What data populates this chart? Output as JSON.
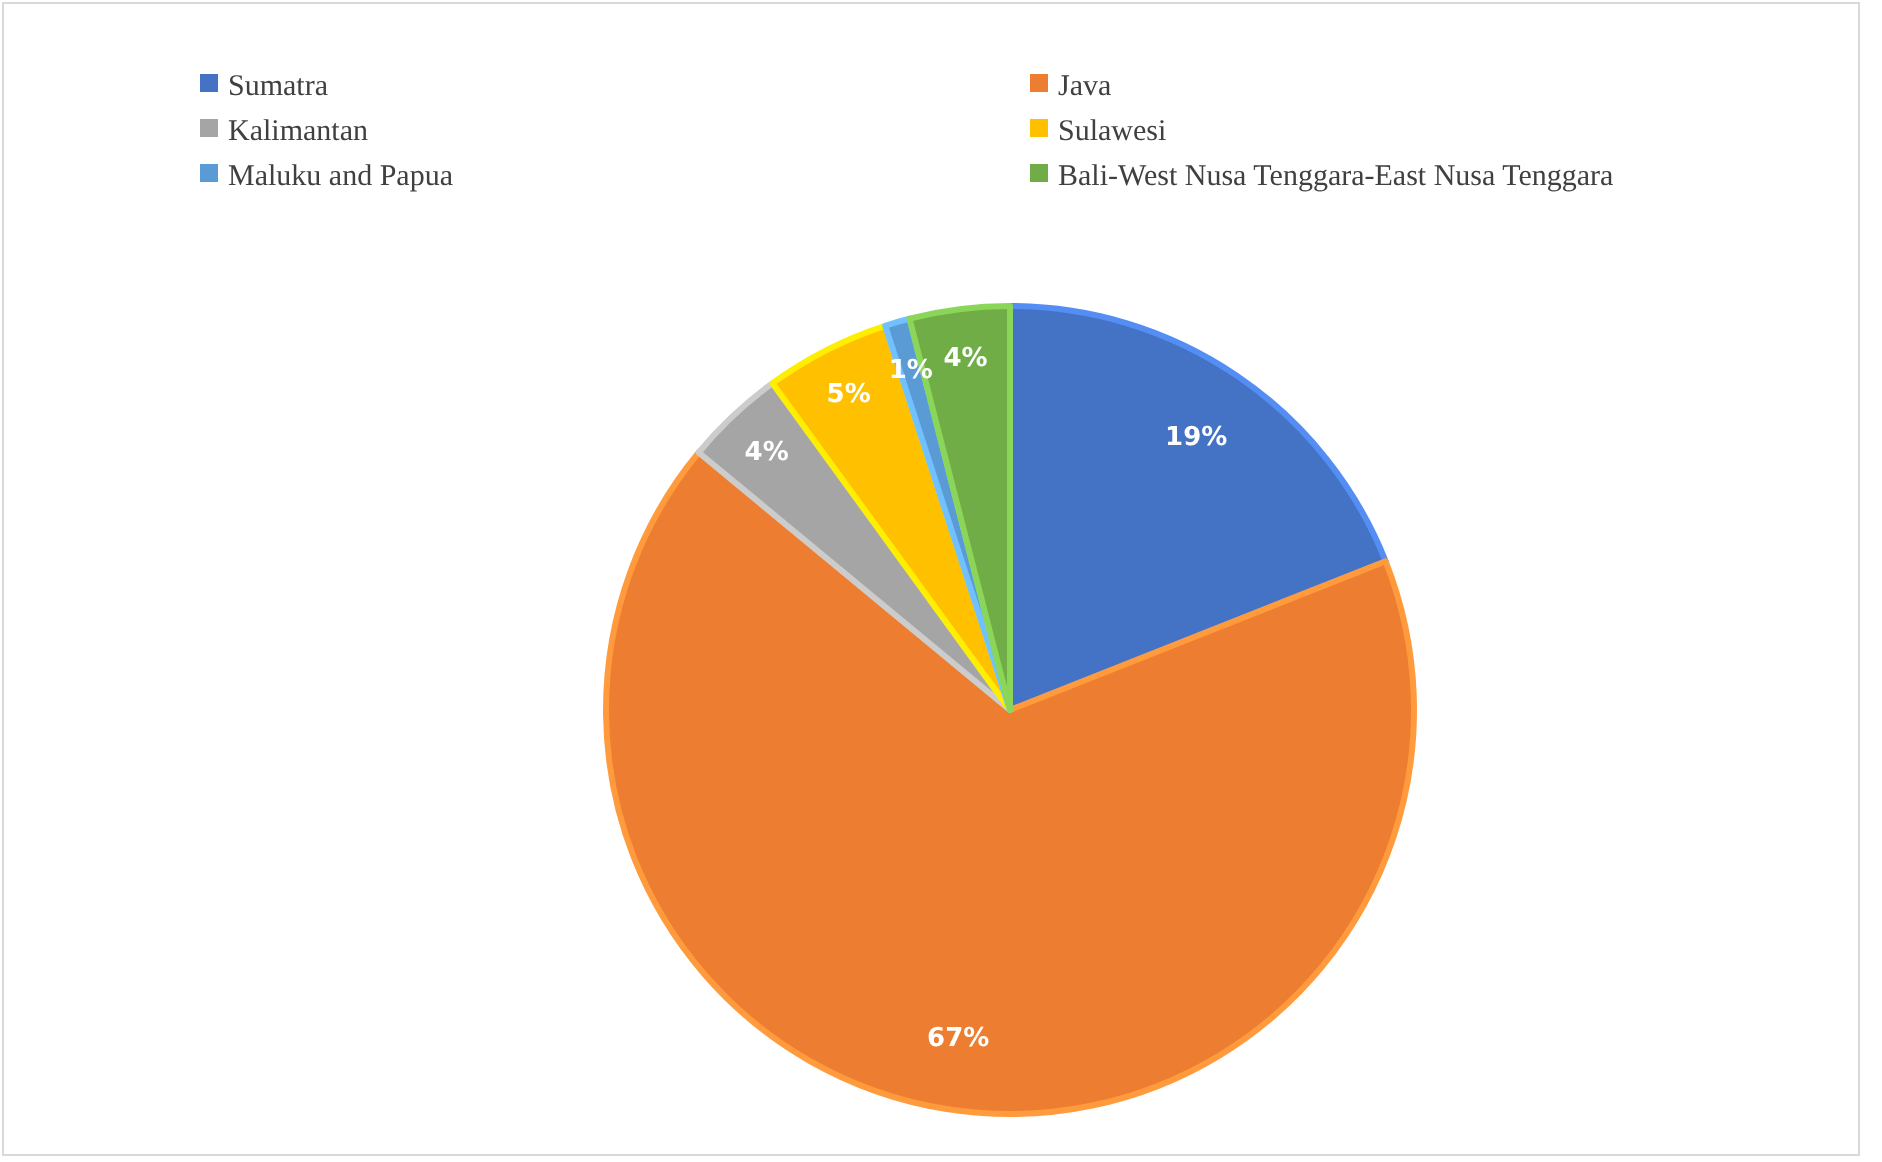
{
  "chart_data": {
    "type": "pie",
    "categories": [
      "Sumatra",
      "Java",
      "Kalimantan",
      "Sulawesi",
      "Maluku and Papua",
      "Bali-West Nusa Tenggara-East Nusa Tenggara"
    ],
    "values": [
      19,
      67,
      4,
      5,
      1,
      4
    ],
    "colors": [
      "#4472c4",
      "#ed7d31",
      "#a5a5a5",
      "#ffc000",
      "#5b9bd5",
      "#70ad47"
    ],
    "value_labels": [
      "19%",
      "67%",
      "4%",
      "5%",
      "1%",
      "4%"
    ],
    "legend": "top"
  }
}
